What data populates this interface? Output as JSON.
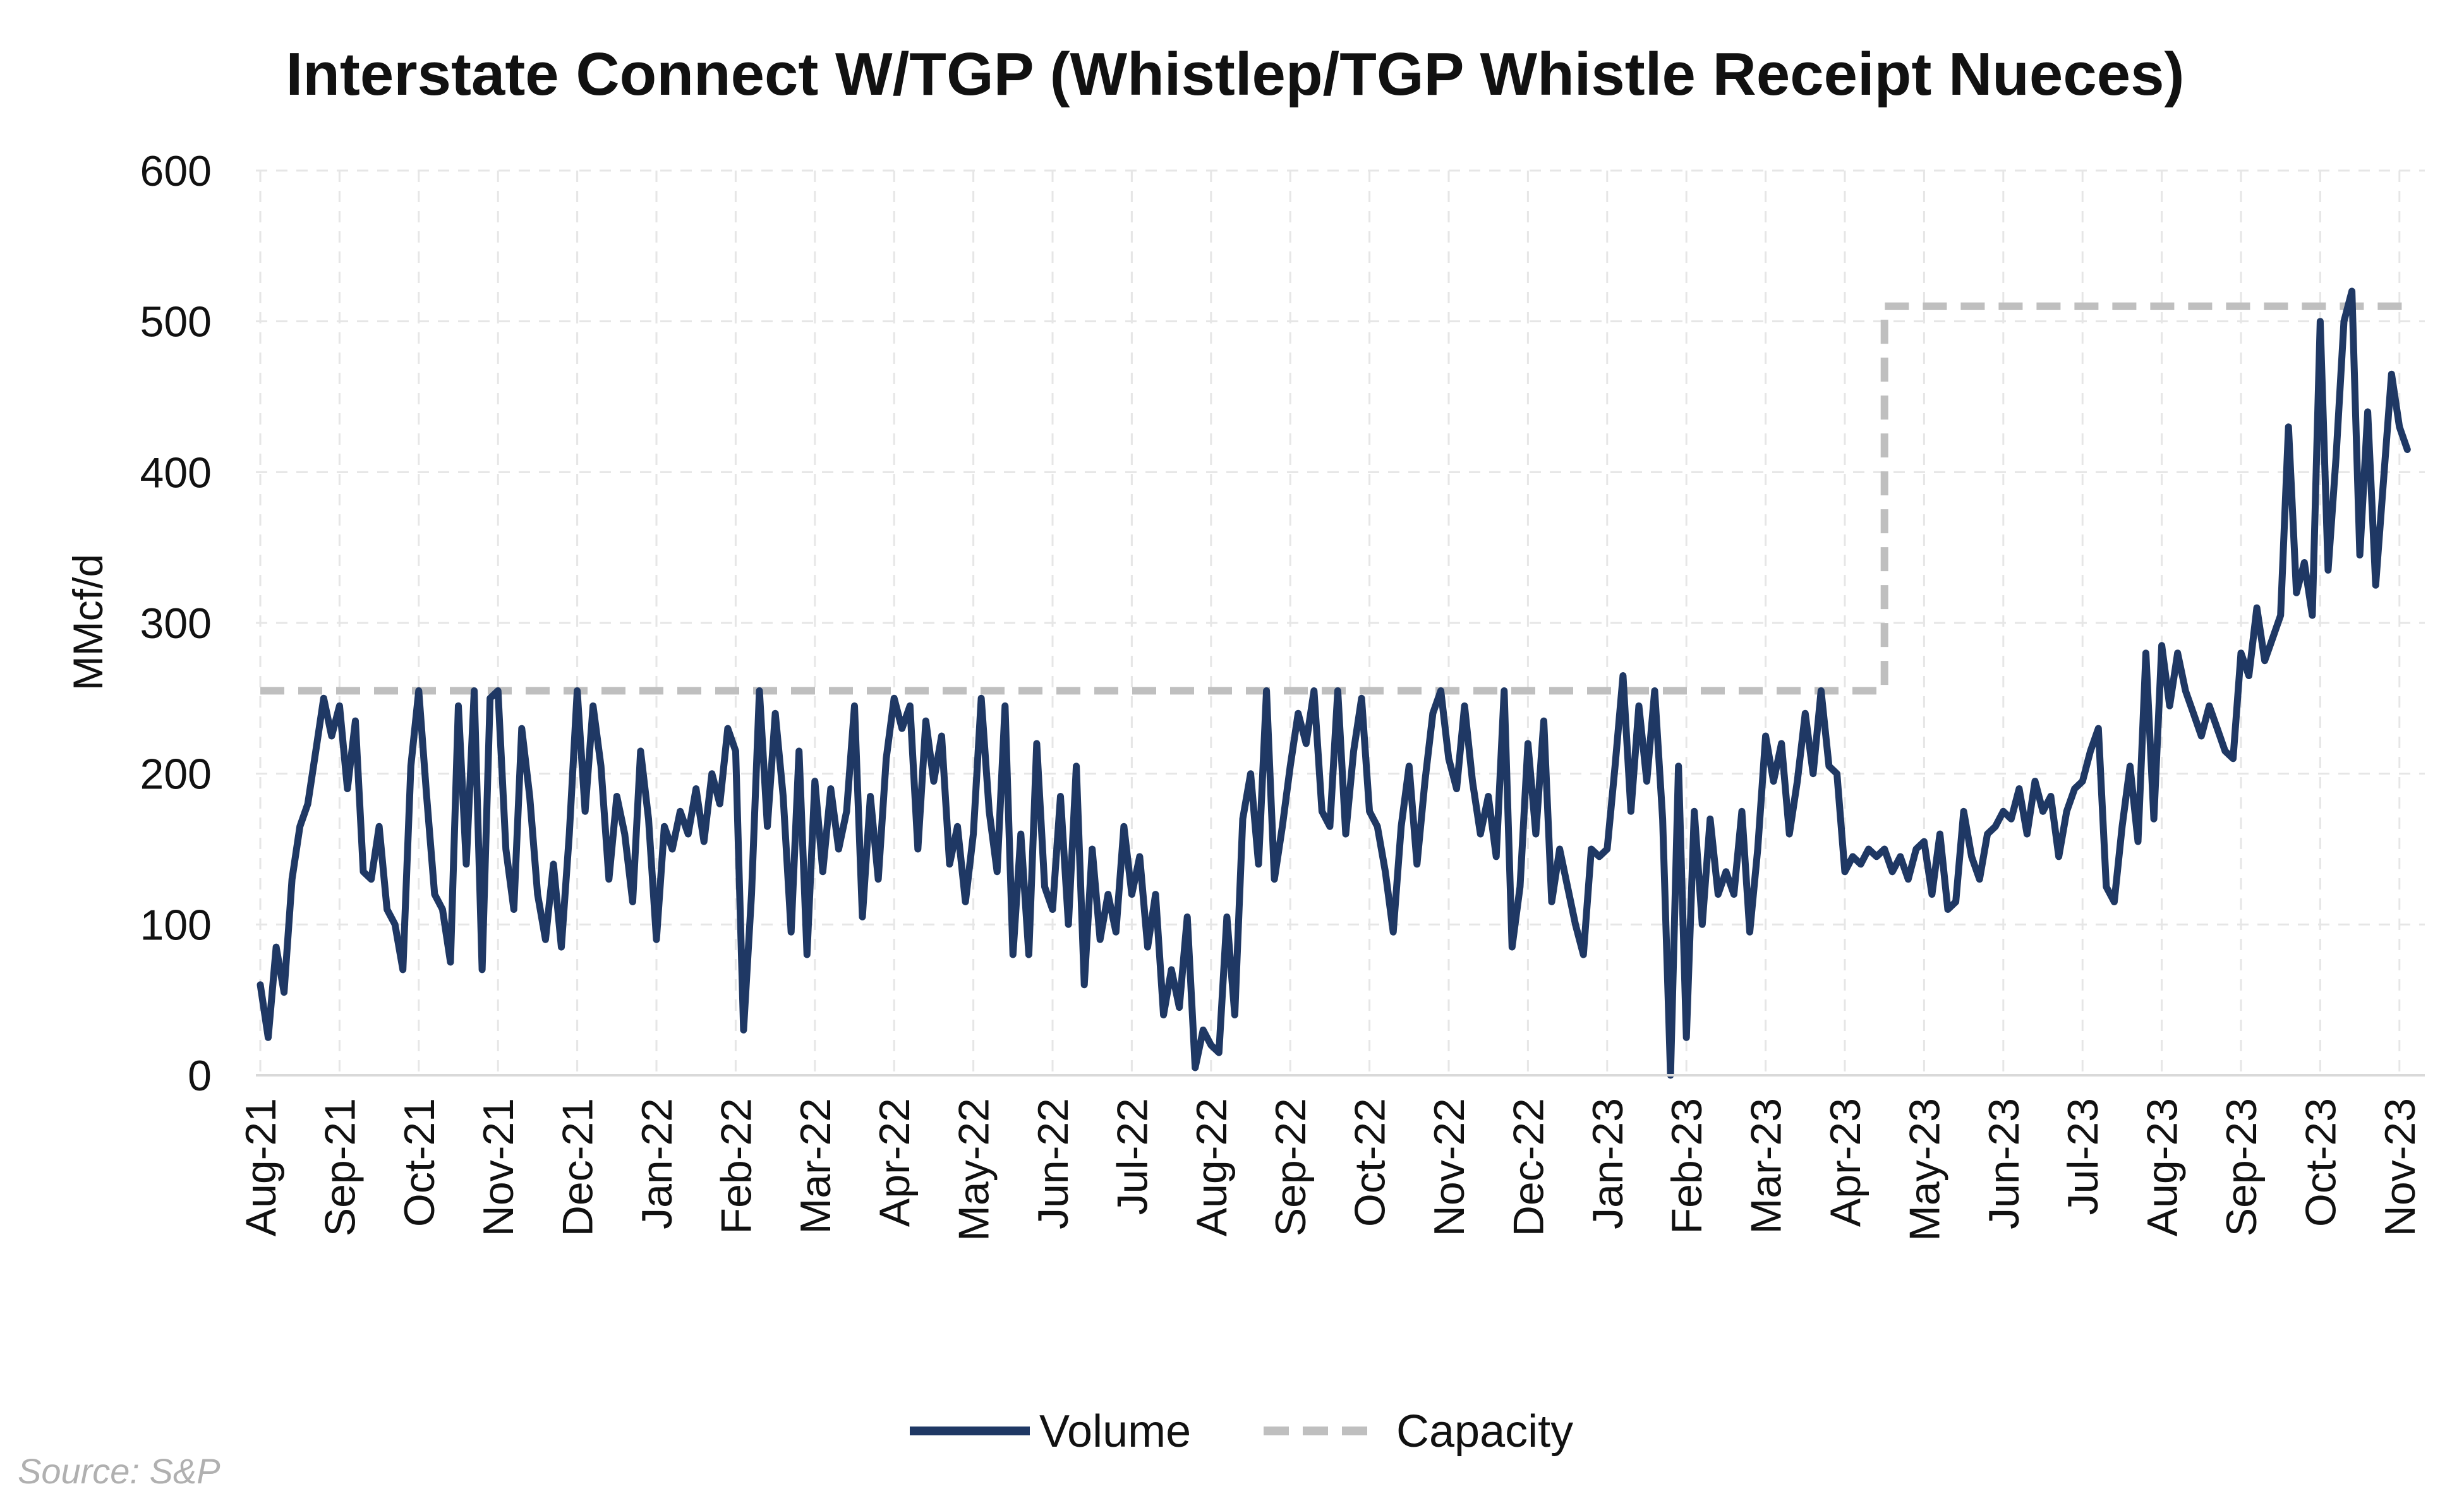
{
  "chart_data": {
    "type": "line",
    "title": "Interstate Connect W/TGP (Whistlep/TGP Whistle Receipt Nueces)",
    "xlabel": "",
    "ylabel": "MMcf/d",
    "ylim": [
      0,
      600
    ],
    "yticks": [
      0,
      100,
      200,
      300,
      400,
      500,
      600
    ],
    "x_tick_labels": [
      "Aug-21",
      "Sep-21",
      "Oct-21",
      "Nov-21",
      "Dec-21",
      "Jan-22",
      "Feb-22",
      "Mar-22",
      "Apr-22",
      "May-22",
      "Jun-22",
      "Jul-22",
      "Aug-22",
      "Sep-22",
      "Oct-22",
      "Nov-22",
      "Dec-22",
      "Jan-23",
      "Feb-23",
      "Mar-23",
      "Apr-23",
      "May-23",
      "Jun-23",
      "Jul-23",
      "Aug-23",
      "Sep-23",
      "Oct-23",
      "Nov-23"
    ],
    "grid": true,
    "legend_position": "bottom-center",
    "series": [
      {
        "name": "Volume",
        "style": "solid",
        "color": "#1f3864",
        "points": [
          [
            "Aug-21",
            60
          ],
          [
            "Aug-21+3",
            25
          ],
          [
            "Aug-21+6",
            85
          ],
          [
            "Aug-21+9",
            55
          ],
          [
            "Aug-21+12",
            130
          ],
          [
            "Aug-21+15",
            165
          ],
          [
            "Aug-21+18",
            180
          ],
          [
            "Aug-21+21",
            215
          ],
          [
            "Aug-21+24",
            250
          ],
          [
            "Aug-21+27",
            225
          ],
          [
            "Sep-21",
            245
          ],
          [
            "Sep-21+3",
            190
          ],
          [
            "Sep-21+6",
            235
          ],
          [
            "Sep-21+9",
            135
          ],
          [
            "Sep-21+12",
            130
          ],
          [
            "Sep-21+15",
            165
          ],
          [
            "Sep-21+18",
            110
          ],
          [
            "Sep-21+21",
            100
          ],
          [
            "Sep-21+24",
            70
          ],
          [
            "Sep-21+27",
            205
          ],
          [
            "Oct-21",
            255
          ],
          [
            "Oct-21+3",
            185
          ],
          [
            "Oct-21+6",
            120
          ],
          [
            "Oct-21+9",
            110
          ],
          [
            "Oct-21+12",
            75
          ],
          [
            "Oct-21+15",
            245
          ],
          [
            "Oct-21+18",
            140
          ],
          [
            "Oct-21+21",
            255
          ],
          [
            "Oct-21+24",
            70
          ],
          [
            "Oct-21+27",
            250
          ],
          [
            "Nov-21",
            255
          ],
          [
            "Nov-21+3",
            150
          ],
          [
            "Nov-21+6",
            110
          ],
          [
            "Nov-21+9",
            230
          ],
          [
            "Nov-21+12",
            185
          ],
          [
            "Nov-21+15",
            120
          ],
          [
            "Nov-21+18",
            90
          ],
          [
            "Nov-21+21",
            140
          ],
          [
            "Nov-21+24",
            85
          ],
          [
            "Nov-21+27",
            160
          ],
          [
            "Dec-21",
            255
          ],
          [
            "Dec-21+3",
            175
          ],
          [
            "Dec-21+6",
            245
          ],
          [
            "Dec-21+9",
            205
          ],
          [
            "Dec-21+12",
            130
          ],
          [
            "Dec-21+15",
            185
          ],
          [
            "Dec-21+18",
            160
          ],
          [
            "Dec-21+21",
            115
          ],
          [
            "Dec-21+24",
            215
          ],
          [
            "Dec-21+27",
            170
          ],
          [
            "Jan-22",
            90
          ],
          [
            "Jan-22+3",
            165
          ],
          [
            "Jan-22+6",
            150
          ],
          [
            "Jan-22+9",
            175
          ],
          [
            "Jan-22+12",
            160
          ],
          [
            "Jan-22+15",
            190
          ],
          [
            "Jan-22+18",
            155
          ],
          [
            "Jan-22+21",
            200
          ],
          [
            "Jan-22+24",
            180
          ],
          [
            "Jan-22+27",
            230
          ],
          [
            "Feb-22",
            215
          ],
          [
            "Feb-22+3",
            30
          ],
          [
            "Feb-22+6",
            120
          ],
          [
            "Feb-22+9",
            255
          ],
          [
            "Feb-22+12",
            165
          ],
          [
            "Feb-22+15",
            240
          ],
          [
            "Feb-22+18",
            185
          ],
          [
            "Feb-22+21",
            95
          ],
          [
            "Feb-22+24",
            215
          ],
          [
            "Feb-22+27",
            80
          ],
          [
            "Mar-22",
            195
          ],
          [
            "Mar-22+3",
            135
          ],
          [
            "Mar-22+6",
            190
          ],
          [
            "Mar-22+9",
            150
          ],
          [
            "Mar-22+12",
            175
          ],
          [
            "Mar-22+15",
            245
          ],
          [
            "Mar-22+18",
            105
          ],
          [
            "Mar-22+21",
            185
          ],
          [
            "Mar-22+24",
            130
          ],
          [
            "Mar-22+27",
            210
          ],
          [
            "Apr-22",
            250
          ],
          [
            "Apr-22+3",
            230
          ],
          [
            "Apr-22+6",
            245
          ],
          [
            "Apr-22+9",
            150
          ],
          [
            "Apr-22+12",
            235
          ],
          [
            "Apr-22+15",
            195
          ],
          [
            "Apr-22+18",
            225
          ],
          [
            "Apr-22+21",
            140
          ],
          [
            "Apr-22+24",
            165
          ],
          [
            "Apr-22+27",
            115
          ],
          [
            "May-22",
            160
          ],
          [
            "May-22+3",
            250
          ],
          [
            "May-22+6",
            175
          ],
          [
            "May-22+9",
            135
          ],
          [
            "May-22+12",
            245
          ],
          [
            "May-22+15",
            80
          ],
          [
            "May-22+18",
            160
          ],
          [
            "May-22+21",
            80
          ],
          [
            "May-22+24",
            220
          ],
          [
            "May-22+27",
            125
          ],
          [
            "Jun-22",
            110
          ],
          [
            "Jun-22+3",
            185
          ],
          [
            "Jun-22+6",
            100
          ],
          [
            "Jun-22+9",
            205
          ],
          [
            "Jun-22+12",
            60
          ],
          [
            "Jun-22+15",
            150
          ],
          [
            "Jun-22+18",
            90
          ],
          [
            "Jun-22+21",
            120
          ],
          [
            "Jun-22+24",
            95
          ],
          [
            "Jun-22+27",
            165
          ],
          [
            "Jul-22",
            120
          ],
          [
            "Jul-22+3",
            145
          ],
          [
            "Jul-22+6",
            85
          ],
          [
            "Jul-22+9",
            120
          ],
          [
            "Jul-22+12",
            40
          ],
          [
            "Jul-22+15",
            70
          ],
          [
            "Jul-22+18",
            45
          ],
          [
            "Jul-22+21",
            105
          ],
          [
            "Jul-22+24",
            5
          ],
          [
            "Jul-22+27",
            30
          ],
          [
            "Aug-22",
            20
          ],
          [
            "Aug-22+3",
            15
          ],
          [
            "Aug-22+6",
            105
          ],
          [
            "Aug-22+9",
            40
          ],
          [
            "Aug-22+12",
            170
          ],
          [
            "Aug-22+15",
            200
          ],
          [
            "Aug-22+18",
            140
          ],
          [
            "Aug-22+21",
            255
          ],
          [
            "Aug-22+24",
            130
          ],
          [
            "Aug-22+27",
            165
          ],
          [
            "Sep-22",
            205
          ],
          [
            "Sep-22+3",
            240
          ],
          [
            "Sep-22+6",
            220
          ],
          [
            "Sep-22+9",
            255
          ],
          [
            "Sep-22+12",
            175
          ],
          [
            "Sep-22+15",
            165
          ],
          [
            "Sep-22+18",
            255
          ],
          [
            "Sep-22+21",
            160
          ],
          [
            "Sep-22+24",
            215
          ],
          [
            "Sep-22+27",
            250
          ],
          [
            "Oct-22",
            175
          ],
          [
            "Oct-22+3",
            165
          ],
          [
            "Oct-22+6",
            135
          ],
          [
            "Oct-22+9",
            95
          ],
          [
            "Oct-22+12",
            165
          ],
          [
            "Oct-22+15",
            205
          ],
          [
            "Oct-22+18",
            140
          ],
          [
            "Oct-22+21",
            195
          ],
          [
            "Oct-22+24",
            240
          ],
          [
            "Oct-22+27",
            255
          ],
          [
            "Nov-22",
            210
          ],
          [
            "Nov-22+3",
            190
          ],
          [
            "Nov-22+6",
            245
          ],
          [
            "Nov-22+9",
            195
          ],
          [
            "Nov-22+12",
            160
          ],
          [
            "Nov-22+15",
            185
          ],
          [
            "Nov-22+18",
            145
          ],
          [
            "Nov-22+21",
            255
          ],
          [
            "Nov-22+24",
            85
          ],
          [
            "Nov-22+27",
            125
          ],
          [
            "Dec-22",
            220
          ],
          [
            "Dec-22+3",
            160
          ],
          [
            "Dec-22+6",
            235
          ],
          [
            "Dec-22+9",
            115
          ],
          [
            "Dec-22+12",
            150
          ],
          [
            "Dec-22+15",
            125
          ],
          [
            "Dec-22+18",
            100
          ],
          [
            "Dec-22+21",
            80
          ],
          [
            "Dec-22+24",
            150
          ],
          [
            "Dec-22+27",
            145
          ],
          [
            "Jan-23",
            150
          ],
          [
            "Jan-23+3",
            205
          ],
          [
            "Jan-23+6",
            265
          ],
          [
            "Jan-23+9",
            175
          ],
          [
            "Jan-23+12",
            245
          ],
          [
            "Jan-23+15",
            195
          ],
          [
            "Jan-23+18",
            255
          ],
          [
            "Jan-23+21",
            170
          ],
          [
            "Jan-23+24",
            0
          ],
          [
            "Jan-23+27",
            205
          ],
          [
            "Feb-23",
            25
          ],
          [
            "Feb-23+3",
            175
          ],
          [
            "Feb-23+6",
            100
          ],
          [
            "Feb-23+9",
            170
          ],
          [
            "Feb-23+12",
            120
          ],
          [
            "Feb-23+15",
            135
          ],
          [
            "Feb-23+18",
            120
          ],
          [
            "Feb-23+21",
            175
          ],
          [
            "Feb-23+24",
            95
          ],
          [
            "Feb-23+27",
            150
          ],
          [
            "Mar-23",
            225
          ],
          [
            "Mar-23+3",
            195
          ],
          [
            "Mar-23+6",
            220
          ],
          [
            "Mar-23+9",
            160
          ],
          [
            "Mar-23+12",
            195
          ],
          [
            "Mar-23+15",
            240
          ],
          [
            "Mar-23+18",
            200
          ],
          [
            "Mar-23+21",
            255
          ],
          [
            "Mar-23+24",
            205
          ],
          [
            "Mar-23+27",
            200
          ],
          [
            "Apr-23",
            135
          ],
          [
            "Apr-23+3",
            145
          ],
          [
            "Apr-23+6",
            140
          ],
          [
            "Apr-23+9",
            150
          ],
          [
            "Apr-23+12",
            145
          ],
          [
            "Apr-23+15",
            150
          ],
          [
            "Apr-23+18",
            135
          ],
          [
            "Apr-23+21",
            145
          ],
          [
            "Apr-23+24",
            130
          ],
          [
            "Apr-23+27",
            150
          ],
          [
            "May-23",
            155
          ],
          [
            "May-23+3",
            120
          ],
          [
            "May-23+6",
            160
          ],
          [
            "May-23+9",
            110
          ],
          [
            "May-23+12",
            115
          ],
          [
            "May-23+15",
            175
          ],
          [
            "May-23+18",
            145
          ],
          [
            "May-23+21",
            130
          ],
          [
            "May-23+24",
            160
          ],
          [
            "May-23+27",
            165
          ],
          [
            "Jun-23",
            175
          ],
          [
            "Jun-23+3",
            170
          ],
          [
            "Jun-23+6",
            190
          ],
          [
            "Jun-23+9",
            160
          ],
          [
            "Jun-23+12",
            195
          ],
          [
            "Jun-23+15",
            175
          ],
          [
            "Jun-23+18",
            185
          ],
          [
            "Jun-23+21",
            145
          ],
          [
            "Jun-23+24",
            175
          ],
          [
            "Jun-23+27",
            190
          ],
          [
            "Jul-23",
            195
          ],
          [
            "Jul-23+3",
            215
          ],
          [
            "Jul-23+6",
            230
          ],
          [
            "Jul-23+9",
            125
          ],
          [
            "Jul-23+12",
            115
          ],
          [
            "Jul-23+15",
            165
          ],
          [
            "Jul-23+18",
            205
          ],
          [
            "Jul-23+21",
            155
          ],
          [
            "Jul-23+24",
            280
          ],
          [
            "Jul-23+27",
            170
          ],
          [
            "Aug-23",
            285
          ],
          [
            "Aug-23+3",
            245
          ],
          [
            "Aug-23+6",
            280
          ],
          [
            "Aug-23+9",
            255
          ],
          [
            "Aug-23+12",
            240
          ],
          [
            "Aug-23+15",
            225
          ],
          [
            "Aug-23+18",
            245
          ],
          [
            "Aug-23+21",
            230
          ],
          [
            "Aug-23+24",
            215
          ],
          [
            "Aug-23+27",
            210
          ],
          [
            "Sep-23",
            280
          ],
          [
            "Sep-23+3",
            265
          ],
          [
            "Sep-23+6",
            310
          ],
          [
            "Sep-23+9",
            275
          ],
          [
            "Sep-23+12",
            290
          ],
          [
            "Sep-23+15",
            305
          ],
          [
            "Sep-23+18",
            430
          ],
          [
            "Sep-23+21",
            320
          ],
          [
            "Sep-23+24",
            340
          ],
          [
            "Sep-23+27",
            305
          ],
          [
            "Oct-23",
            500
          ],
          [
            "Oct-23+3",
            335
          ],
          [
            "Oct-23+6",
            410
          ],
          [
            "Oct-23+9",
            500
          ],
          [
            "Oct-23+12",
            520
          ],
          [
            "Oct-23+15",
            345
          ],
          [
            "Oct-23+18",
            440
          ],
          [
            "Oct-23+21",
            325
          ],
          [
            "Oct-23+24",
            395
          ],
          [
            "Oct-23+27",
            465
          ],
          [
            "Nov-23",
            430
          ],
          [
            "Nov-23+3",
            415
          ]
        ]
      },
      {
        "name": "Capacity",
        "style": "dashed",
        "color": "#bfbfbf",
        "steps": [
          {
            "from": "Aug-21",
            "to": "Apr-23+15",
            "value": 255
          },
          {
            "from": "Apr-23+15",
            "to": "Nov-23+3",
            "value": 510
          }
        ]
      }
    ]
  },
  "legend": {
    "items": [
      {
        "label": "Volume"
      },
      {
        "label": "Capacity"
      }
    ]
  },
  "source": "Source: S&P"
}
